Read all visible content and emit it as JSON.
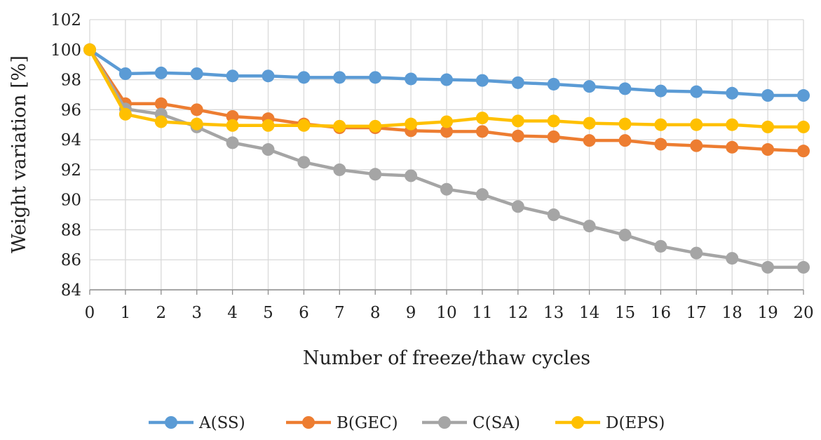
{
  "chart_data": {
    "type": "line",
    "title": "",
    "xlabel": "Number of freeze/thaw cycles",
    "ylabel": "Weight variation [%]",
    "x": [
      0,
      1,
      2,
      3,
      4,
      5,
      6,
      7,
      8,
      9,
      10,
      11,
      12,
      13,
      14,
      15,
      16,
      17,
      18,
      19,
      20
    ],
    "x_tick_labels": [
      "0",
      "1",
      "2",
      "3",
      "4",
      "5",
      "6",
      "7",
      "8",
      "9",
      "10",
      "11",
      "12",
      "13",
      "14",
      "15",
      "16",
      "17",
      "18",
      "19",
      "20"
    ],
    "ylim": [
      84,
      102
    ],
    "y_ticks": [
      84,
      86,
      88,
      90,
      92,
      94,
      96,
      98,
      100,
      102
    ],
    "y_tick_labels": [
      "84",
      "86",
      "88",
      "90",
      "92",
      "94",
      "96",
      "98",
      "100",
      "102"
    ],
    "grid": true,
    "legend_position": "bottom",
    "series": [
      {
        "name": "A(SS)",
        "color": "#5B9BD5",
        "values": [
          100,
          98.4,
          98.45,
          98.4,
          98.25,
          98.25,
          98.15,
          98.15,
          98.15,
          98.05,
          98.0,
          97.95,
          97.8,
          97.7,
          97.55,
          97.4,
          97.25,
          97.2,
          97.1,
          96.95,
          96.95
        ]
      },
      {
        "name": "B(GEC)",
        "color": "#ED7D31",
        "values": [
          100,
          96.4,
          96.4,
          96.0,
          95.55,
          95.4,
          95.05,
          94.8,
          94.8,
          94.6,
          94.55,
          94.55,
          94.25,
          94.2,
          93.95,
          93.95,
          93.7,
          93.6,
          93.5,
          93.35,
          93.25
        ]
      },
      {
        "name": "C(SA)",
        "color": "#A5A5A5",
        "values": [
          100,
          96.05,
          95.7,
          94.85,
          93.8,
          93.35,
          92.5,
          92.0,
          91.7,
          91.6,
          90.7,
          90.35,
          89.55,
          89.0,
          88.25,
          87.65,
          86.9,
          86.45,
          86.1,
          85.5,
          85.5
        ]
      },
      {
        "name": "D(EPS)",
        "color": "#FFC000",
        "values": [
          100,
          95.7,
          95.2,
          95.05,
          94.95,
          94.95,
          94.95,
          94.9,
          94.9,
          95.05,
          95.2,
          95.45,
          95.25,
          95.25,
          95.1,
          95.05,
          95.0,
          95.0,
          95.0,
          94.85,
          94.85
        ]
      }
    ]
  }
}
